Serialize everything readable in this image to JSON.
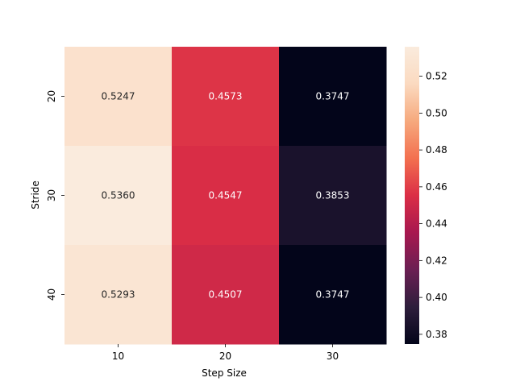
{
  "chart_data": {
    "type": "heatmap",
    "title": "",
    "xlabel": "Step Size",
    "ylabel": "Stride",
    "x_categories": [
      "10",
      "20",
      "30"
    ],
    "y_categories": [
      "20",
      "30",
      "40"
    ],
    "values": [
      [
        0.5247,
        0.4573,
        0.3747
      ],
      [
        0.536,
        0.4547,
        0.3853
      ],
      [
        0.5293,
        0.4507,
        0.3747
      ]
    ],
    "cell_labels": [
      [
        "0.5247",
        "0.4573",
        "0.3747"
      ],
      [
        "0.5360",
        "0.4547",
        "0.3853"
      ],
      [
        "0.5293",
        "0.4507",
        "0.3747"
      ]
    ],
    "colorbar": {
      "vmin": 0.3747,
      "vmax": 0.536,
      "ticks": [
        0.38,
        0.4,
        0.42,
        0.44,
        0.46,
        0.48,
        0.5,
        0.52
      ],
      "tick_labels": [
        "0.38",
        "0.40",
        "0.42",
        "0.44",
        "0.46",
        "0.48",
        "0.50",
        "0.52"
      ],
      "colormap": "rocket",
      "colormap_stops": [
        "#03051a",
        "#2e1e3c",
        "#6b1f53",
        "#a8184f",
        "#db2e46",
        "#f3704f",
        "#f6a97d",
        "#fbdac0",
        "#faebdd"
      ]
    },
    "grid": false,
    "legend": "colorbar-right"
  }
}
